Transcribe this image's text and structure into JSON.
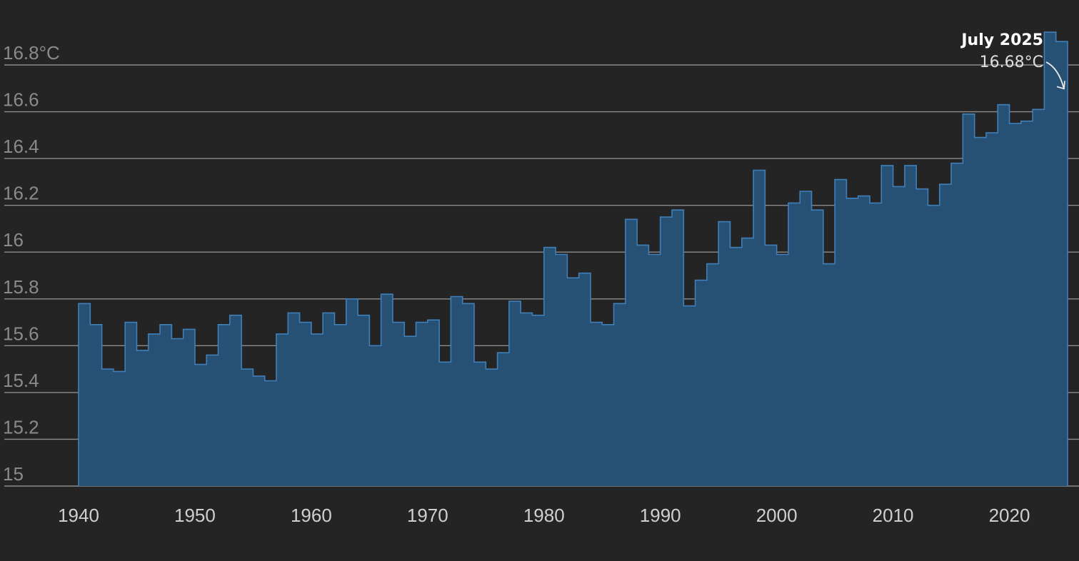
{
  "chart_data": {
    "type": "area",
    "title": "",
    "xlabel": "",
    "ylabel": "",
    "x": [
      1940,
      1941,
      1942,
      1943,
      1944,
      1945,
      1946,
      1947,
      1948,
      1949,
      1950,
      1951,
      1952,
      1953,
      1954,
      1955,
      1956,
      1957,
      1958,
      1959,
      1960,
      1961,
      1962,
      1963,
      1964,
      1965,
      1966,
      1967,
      1968,
      1969,
      1970,
      1971,
      1972,
      1973,
      1974,
      1975,
      1976,
      1977,
      1978,
      1979,
      1980,
      1981,
      1982,
      1983,
      1984,
      1985,
      1986,
      1987,
      1988,
      1989,
      1990,
      1991,
      1992,
      1993,
      1994,
      1995,
      1996,
      1997,
      1998,
      1999,
      2000,
      2001,
      2002,
      2003,
      2004,
      2005,
      2006,
      2007,
      2008,
      2009,
      2010,
      2011,
      2012,
      2013,
      2014,
      2015,
      2016,
      2017,
      2018,
      2019,
      2020,
      2021,
      2022,
      2023,
      2024,
      2025
    ],
    "values": [
      15.78,
      15.69,
      15.5,
      15.49,
      15.7,
      15.58,
      15.65,
      15.69,
      15.63,
      15.67,
      15.52,
      15.56,
      15.69,
      15.73,
      15.5,
      15.47,
      15.45,
      15.65,
      15.74,
      15.7,
      15.65,
      15.74,
      15.69,
      15.8,
      15.73,
      15.6,
      15.82,
      15.7,
      15.64,
      15.7,
      15.71,
      15.53,
      15.81,
      15.78,
      15.53,
      15.5,
      15.57,
      15.79,
      15.74,
      15.73,
      16.02,
      15.99,
      15.89,
      15.91,
      15.7,
      15.69,
      15.78,
      16.14,
      16.03,
      15.99,
      16.15,
      16.18,
      15.77,
      15.88,
      15.95,
      16.13,
      16.02,
      16.06,
      16.35,
      16.03,
      15.99,
      16.21,
      16.26,
      16.18,
      15.95,
      16.31,
      16.23,
      16.24,
      16.21,
      16.37,
      16.28,
      16.37,
      16.27,
      16.2,
      16.29,
      16.38,
      16.59,
      16.49,
      16.51,
      16.63,
      16.55,
      16.56,
      16.61,
      16.94,
      16.9,
      16.68
    ],
    "xlim": [
      1940,
      2025
    ],
    "ylim": [
      15,
      16.85
    ],
    "y_ticks": [
      {
        "value": 15.0,
        "label": "15"
      },
      {
        "value": 15.2,
        "label": "15.2"
      },
      {
        "value": 15.4,
        "label": "15.4"
      },
      {
        "value": 15.6,
        "label": "15.6"
      },
      {
        "value": 15.8,
        "label": "15.8"
      },
      {
        "value": 16.0,
        "label": "16"
      },
      {
        "value": 16.2,
        "label": "16.2"
      },
      {
        "value": 16.4,
        "label": "16.4"
      },
      {
        "value": 16.6,
        "label": "16.6"
      },
      {
        "value": 16.8,
        "label": "16.8°C"
      }
    ],
    "x_ticks": [
      {
        "value": 1940,
        "label": "1940"
      },
      {
        "value": 1950,
        "label": "1950"
      },
      {
        "value": 1960,
        "label": "1960"
      },
      {
        "value": 1970,
        "label": "1970"
      },
      {
        "value": 1980,
        "label": "1980"
      },
      {
        "value": 1990,
        "label": "1990"
      },
      {
        "value": 2000,
        "label": "2000"
      },
      {
        "value": 2010,
        "label": "2010"
      },
      {
        "value": 2020,
        "label": "2020"
      }
    ],
    "grid": true,
    "annotation": {
      "label": "July 2025",
      "value_text": "16.68°C",
      "target_x": 2025,
      "target_y": 16.68
    },
    "colors": {
      "background": "#242424",
      "fill": "#265074",
      "stroke": "#3f7fba",
      "grid": "#8c8c8c",
      "y_tick_text": "#8a8a8a",
      "x_tick_text": "#cfcfcf",
      "annotation_text": "#ffffff"
    }
  }
}
